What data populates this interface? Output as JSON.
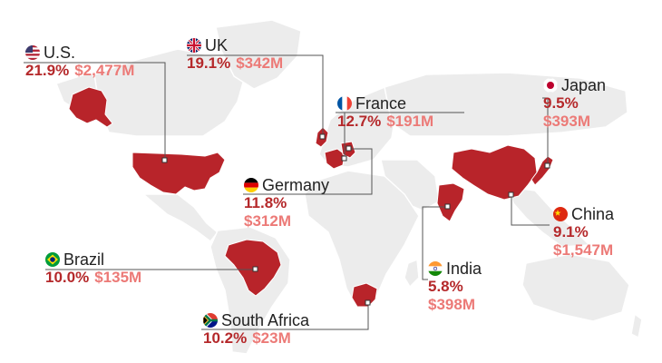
{
  "colors": {
    "land": "#ececec",
    "highlight": "#b8242a",
    "percent_text": "#b5292b",
    "revenue_text": "#ec7a77",
    "leader_line": "#555555"
  },
  "countries": {
    "us": {
      "name": "U.S.",
      "percent": "21.9%",
      "revenue": "$2,477M",
      "flag_icon": "us-flag-icon"
    },
    "uk": {
      "name": "UK",
      "percent": "19.1%",
      "revenue": "$342M",
      "flag_icon": "uk-flag-icon"
    },
    "france": {
      "name": "France",
      "percent": "12.7%",
      "revenue": "$191M",
      "flag_icon": "france-flag-icon"
    },
    "japan": {
      "name": "Japan",
      "percent": "9.5%",
      "revenue": "$393M",
      "flag_icon": "japan-flag-icon"
    },
    "germany": {
      "name": "Germany",
      "percent": "11.8%",
      "revenue": "$312M",
      "flag_icon": "germany-flag-icon"
    },
    "china": {
      "name": "China",
      "percent": "9.1%",
      "revenue": "$1,547M",
      "flag_icon": "china-flag-icon"
    },
    "brazil": {
      "name": "Brazil",
      "percent": "10.0%",
      "revenue": "$135M",
      "flag_icon": "brazil-flag-icon"
    },
    "india": {
      "name": "India",
      "percent": "5.8%",
      "revenue": "$398M",
      "flag_icon": "india-flag-icon"
    },
    "south_africa": {
      "name": "South Africa",
      "percent": "10.2%",
      "revenue": "$23M",
      "flag_icon": "south-africa-flag-icon"
    }
  }
}
